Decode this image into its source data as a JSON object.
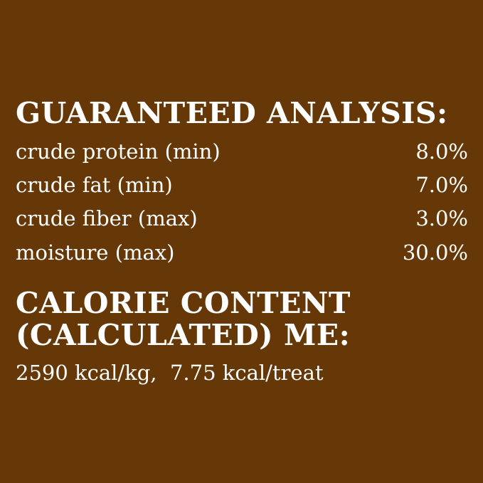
{
  "analysis": {
    "heading": "GUARANTEED ANALYSIS:",
    "rows": [
      {
        "label": "crude protein (min)",
        "value": "8.0%"
      },
      {
        "label": "crude fat (min)",
        "value": "7.0%"
      },
      {
        "label": "crude fiber (max)",
        "value": "3.0%"
      },
      {
        "label": "moisture (max)",
        "value": "30.0%"
      }
    ]
  },
  "calorie": {
    "heading_line1": "CALORIE CONTENT",
    "heading_line2": "(CALCULATED) ME:",
    "value": "2590 kcal/kg,  7.75 kcal/treat"
  },
  "colors": {
    "background": "#663807",
    "text": "#ffffff"
  }
}
